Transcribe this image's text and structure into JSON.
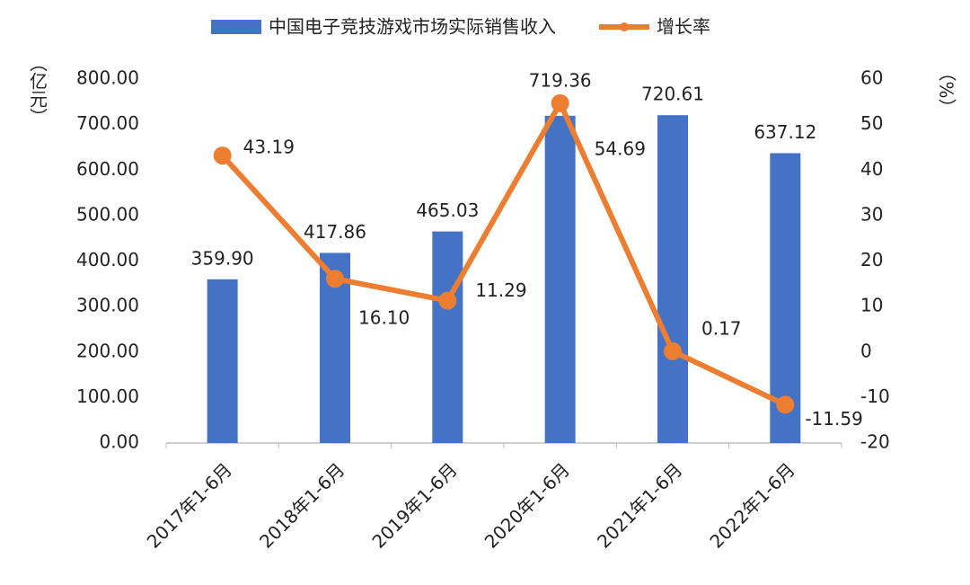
{
  "chart_data": {
    "type": "bar_line",
    "categories": [
      "2017年1-6月",
      "2018年1-6月",
      "2019年1-6月",
      "2020年1-6月",
      "2021年1-6月",
      "2022年1-6月"
    ],
    "series": [
      {
        "name": "中国电子竞技游戏市场实际销售收入",
        "color": "#4472C4",
        "type": "bar",
        "values": [
          359.9,
          417.86,
          465.03,
          719.36,
          720.61,
          637.12
        ],
        "value_labels": [
          "359.90",
          "417.86",
          "465.03",
          "719.36",
          "720.61",
          "637.12"
        ]
      },
      {
        "name": "增长率",
        "color": "#ED7D31",
        "type": "line",
        "axis": "y2",
        "values": [
          43.19,
          16.1,
          11.29,
          54.69,
          0.17,
          -11.59
        ],
        "value_labels": [
          "43.19",
          "16.10",
          "11.29",
          "54.69",
          "0.17",
          "-11.59"
        ]
      }
    ],
    "y_label": "（亿元）",
    "y2_label": "（%）",
    "ylim": [
      0,
      800
    ],
    "yticks": [
      {
        "value": 0,
        "label": "0.00"
      },
      {
        "value": 100,
        "label": "100.00"
      },
      {
        "value": 200,
        "label": "200.00"
      },
      {
        "value": 300,
        "label": "300.00"
      },
      {
        "value": 400,
        "label": "400.00"
      },
      {
        "value": 500,
        "label": "500.00"
      },
      {
        "value": 600,
        "label": "600.00"
      },
      {
        "value": 700,
        "label": "700.00"
      },
      {
        "value": 800,
        "label": "800.00"
      }
    ],
    "y2lim": [
      -20,
      60
    ],
    "y2ticks": [
      -20,
      -10,
      0,
      10,
      20,
      30,
      40,
      50,
      60
    ],
    "grid": false,
    "legend": "top"
  }
}
